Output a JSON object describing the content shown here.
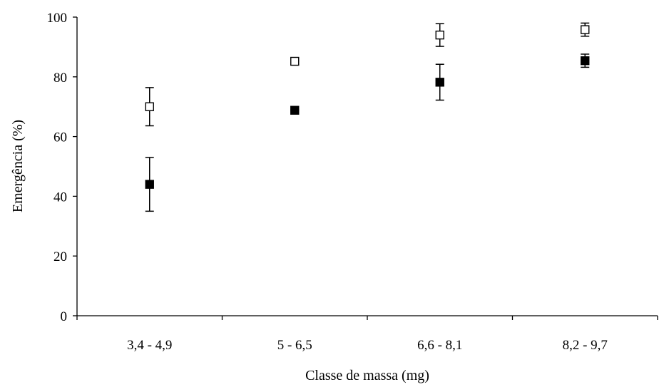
{
  "chart_data": {
    "type": "scatter",
    "title": "",
    "xlabel": "Classe de massa (mg)",
    "ylabel": "Emergência (%)",
    "categories": [
      "3,4 - 4,9",
      "5 - 6,5",
      "6,6 - 8,1",
      "8,2 - 9,7"
    ],
    "ylim": [
      0,
      100
    ],
    "yticks": [
      "0",
      "20",
      "40",
      "60",
      "80",
      "100"
    ],
    "grid": false,
    "legend": "none",
    "series": [
      {
        "marker": "open-square",
        "color": "#000000",
        "values": [
          70,
          85.2,
          94,
          95.8
        ],
        "error_low": [
          63.6,
          84,
          90.2,
          93.6
        ],
        "error_high": [
          76.4,
          86.4,
          97.8,
          98
        ]
      },
      {
        "marker": "filled-square",
        "color": "#000000",
        "values": [
          44,
          68.8,
          78.2,
          85.4
        ],
        "error_low": [
          35,
          68.6,
          72.2,
          83.2
        ],
        "error_high": [
          53,
          69,
          84.2,
          87.6
        ]
      }
    ]
  }
}
